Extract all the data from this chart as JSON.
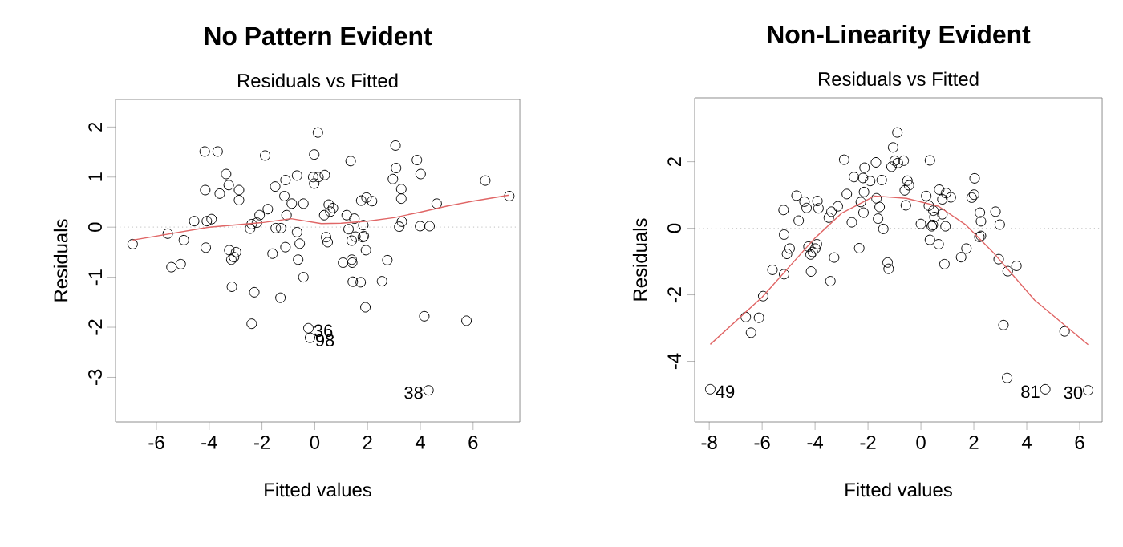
{
  "chart_data": [
    {
      "type": "scatter",
      "title": "No Pattern Evident",
      "subtitle": "Residuals vs Fitted",
      "xlabel": "Fitted values",
      "ylabel": "Residuals",
      "xlim": [
        -7.55,
        7.77
      ],
      "ylim": [
        -3.89,
        2.55
      ],
      "xticks": [
        -6,
        -4,
        -2,
        0,
        2,
        4,
        6
      ],
      "yticks": [
        -3,
        -2,
        -1,
        0,
        1,
        2
      ],
      "marker": "circle",
      "series": [
        {
          "color": "#000000",
          "x": [
            -6.9,
            -5.57,
            -4.96,
            -5.43,
            -5.08,
            -4.57,
            -4.17,
            -3.68,
            -4.15,
            -4.13,
            -4.09,
            -3.91,
            -3.6,
            -3.36,
            -3.26,
            -2.87,
            -2.87,
            -3.24,
            -3.16,
            -3.06,
            -2.98,
            -3.14,
            -2.29,
            -2.39,
            -2.45,
            -2.39,
            -2.19,
            -2.09,
            -1.88,
            -1.78,
            -1.6,
            -1.5,
            -1.48,
            -1.28,
            -1.3,
            -1.15,
            -1.11,
            -1.11,
            -1.07,
            -0.87,
            -0.67,
            -0.67,
            -0.57,
            -0.63,
            -0.43,
            -0.43,
            -0.24,
            -0.18,
            -0.06,
            -0.02,
            -0.02,
            0.12,
            0.14,
            0.38,
            0.36,
            0.43,
            0.49,
            0.53,
            0.59,
            0.69,
            1.07,
            1.21,
            1.28,
            1.36,
            1.4,
            1.42,
            1.4,
            1.44,
            1.5,
            1.54,
            1.76,
            1.74,
            1.82,
            1.86,
            1.84,
            1.94,
            1.92,
            1.96,
            2.17,
            2.55,
            2.75,
            2.96,
            3.08,
            3.06,
            3.28,
            3.28,
            3.2,
            3.3,
            3.87,
            4.01,
            3.99,
            4.35,
            4.15,
            4.31,
            4.62,
            5.75,
            6.46,
            7.37
          ],
          "values": [
            -0.34,
            -0.13,
            -0.26,
            -0.8,
            -0.74,
            0.12,
            1.51,
            1.51,
            0.74,
            -0.41,
            0.12,
            0.16,
            0.67,
            1.06,
            0.84,
            0.74,
            0.54,
            -0.46,
            -0.65,
            -0.6,
            -0.5,
            -1.19,
            -1.3,
            -1.93,
            -0.03,
            0.06,
            0.09,
            0.24,
            1.43,
            0.36,
            -0.53,
            0.81,
            -0.02,
            -0.02,
            -1.41,
            0.62,
            0.94,
            -0.4,
            0.24,
            0.47,
            1.03,
            -0.1,
            -0.33,
            -0.65,
            0.47,
            -1.0,
            -2.02,
            -2.21,
            1.0,
            1.45,
            0.87,
            1.89,
            1.0,
            1.04,
            0.24,
            -0.2,
            -0.3,
            0.45,
            0.31,
            0.38,
            -0.71,
            0.24,
            -0.04,
            1.32,
            -0.65,
            -0.71,
            -0.27,
            -1.09,
            0.17,
            -0.19,
            0.53,
            -1.1,
            -0.2,
            -0.18,
            0.04,
            -0.46,
            -1.6,
            0.59,
            0.52,
            -1.08,
            -0.66,
            0.96,
            1.18,
            1.63,
            0.76,
            0.57,
            0.01,
            0.11,
            1.34,
            1.06,
            0.02,
            0.02,
            -1.78,
            -3.26,
            0.47,
            -1.87,
            0.93,
            0.62
          ]
        },
        {
          "type": "line",
          "color": "#e06666",
          "marker": "none",
          "x": [
            -6.9,
            -4,
            -2,
            -0.9,
            0.25,
            1,
            2,
            3,
            4,
            5,
            6,
            7.37
          ],
          "values": [
            -0.26,
            0.0,
            0.09,
            0.17,
            0.07,
            0.08,
            0.12,
            0.19,
            0.3,
            0.42,
            0.52,
            0.64
          ]
        }
      ],
      "ref_lines": [
        {
          "axis": "y",
          "value": 0,
          "color": "#cccccc",
          "line_style": "dotted"
        }
      ],
      "annotations": [
        {
          "text": "36",
          "x": -0.24,
          "y": -2.02
        },
        {
          "text": "98",
          "x": -0.18,
          "y": -2.21
        },
        {
          "text": "38",
          "x": 4.31,
          "y": -3.26
        }
      ]
    },
    {
      "type": "scatter",
      "title": "Non-Linearity Evident",
      "subtitle": "Residuals vs Fitted",
      "xlabel": "Fitted values",
      "ylabel": "Residuals",
      "xlim": [
        -8.55,
        6.85
      ],
      "ylim": [
        -5.82,
        3.92
      ],
      "xticks": [
        -8,
        -6,
        -4,
        -2,
        0,
        2,
        4,
        6
      ],
      "yticks": [
        -4,
        -2,
        0,
        2
      ],
      "marker": "circle",
      "series": [
        {
          "color": "#000000",
          "x": [
            -7.96,
            -6.62,
            -6.42,
            -6.12,
            -5.96,
            -5.61,
            -5.17,
            -5.17,
            -5.19,
            -5.06,
            -4.96,
            -4.7,
            -4.62,
            -4.4,
            -4.32,
            -4.25,
            -4.17,
            -4.09,
            -3.99,
            -3.93,
            -4.15,
            -3.91,
            -3.87,
            -3.48,
            -3.38,
            -3.28,
            -3.42,
            -3.14,
            -2.9,
            -2.8,
            -2.61,
            -2.53,
            -2.33,
            -2.27,
            -2.19,
            -2.13,
            -2.15,
            -2.17,
            -1.92,
            -1.7,
            -1.68,
            -1.62,
            -1.56,
            -1.48,
            -1.42,
            -1.26,
            -1.22,
            -1.11,
            -1.05,
            -0.99,
            -0.89,
            -0.87,
            -0.65,
            -0.61,
            -0.57,
            -0.51,
            -0.45,
            0.0,
            0.2,
            0.34,
            0.3,
            0.34,
            0.41,
            0.47,
            0.45,
            0.51,
            0.67,
            0.69,
            0.81,
            0.81,
            0.89,
            0.93,
            0.95,
            1.13,
            1.52,
            1.72,
            1.92,
            2.03,
            2.01,
            2.23,
            2.27,
            2.21,
            2.27,
            2.82,
            2.98,
            2.94,
            3.12,
            3.28,
            3.26,
            3.61,
            4.7,
            5.43,
            6.32
          ],
          "values": [
            -4.84,
            -2.67,
            -3.14,
            -2.69,
            -2.04,
            -1.25,
            -1.38,
            -0.19,
            0.55,
            -0.77,
            -0.61,
            0.98,
            0.23,
            0.8,
            0.61,
            -0.55,
            -0.79,
            -0.71,
            -0.61,
            -0.48,
            -1.3,
            0.82,
            0.6,
            0.32,
            0.5,
            -0.88,
            -1.59,
            0.66,
            2.06,
            1.03,
            0.18,
            1.54,
            -0.6,
            0.79,
            1.51,
            1.82,
            1.09,
            0.47,
            1.42,
            1.98,
            0.9,
            0.29,
            0.64,
            1.45,
            -0.02,
            -1.03,
            -1.22,
            1.85,
            2.43,
            2.03,
            2.88,
            1.96,
            2.03,
            1.14,
            0.69,
            1.43,
            1.29,
            0.13,
            0.97,
            2.04,
            0.68,
            -0.35,
            0.06,
            0.53,
            0.1,
            0.34,
            -0.48,
            1.16,
            0.87,
            0.42,
            -1.08,
            0.06,
            1.06,
            0.93,
            -0.87,
            -0.61,
            0.92,
            1.5,
            1.01,
            0.47,
            0.21,
            -0.26,
            -0.23,
            0.5,
            0.11,
            -0.93,
            -2.91,
            -1.29,
            -4.5,
            -1.13,
            -4.84,
            -3.1,
            -4.87
          ]
        },
        {
          "type": "line",
          "color": "#e06666",
          "marker": "none",
          "x": [
            -7.96,
            -6.0,
            -4.0,
            -3.0,
            -1.75,
            -0.55,
            0.67,
            1.7,
            2.7,
            4.3,
            6.32
          ],
          "values": [
            -3.49,
            -2.07,
            -0.29,
            0.45,
            0.97,
            0.9,
            0.66,
            0.1,
            -0.7,
            -2.16,
            -3.5
          ]
        }
      ],
      "ref_lines": [
        {
          "axis": "y",
          "value": 0,
          "color": "#cccccc",
          "line_style": "dotted"
        }
      ],
      "annotations": [
        {
          "text": "49",
          "x": -7.96,
          "y": -4.84
        },
        {
          "text": "81",
          "x": 4.7,
          "y": -4.84
        },
        {
          "text": "30",
          "x": 6.32,
          "y": -4.87
        }
      ]
    }
  ]
}
